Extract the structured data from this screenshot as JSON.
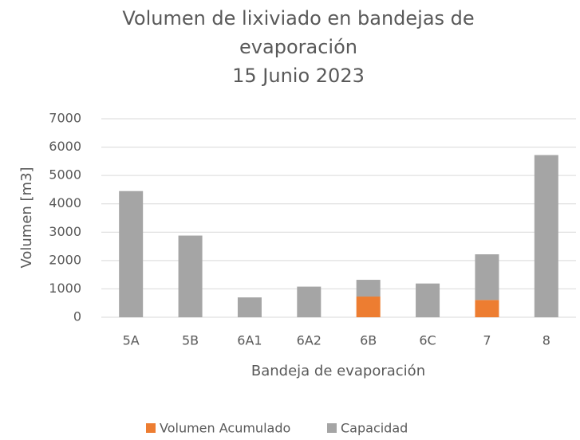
{
  "chart_data": {
    "type": "stacked_bar",
    "title": [
      "Volumen de lixiviado en bandejas de",
      "evaporación",
      "15 Junio 2023"
    ],
    "xlabel": "Bandeja de evaporación",
    "ylabel": "Volumen [m3]",
    "categories": [
      "5A",
      "5B",
      "6A1",
      "6A2",
      "6B",
      "6C",
      "7",
      "8"
    ],
    "series": [
      {
        "name": "Volumen Acumulado",
        "color": "#ed7d31",
        "values": [
          0,
          0,
          0,
          0,
          730,
          0,
          610,
          0
        ]
      },
      {
        "name": "Capacidad",
        "color": "#a5a5a5",
        "values": [
          4450,
          2880,
          700,
          1080,
          590,
          1190,
          1610,
          5720
        ]
      }
    ],
    "ylim": [
      0,
      7000
    ],
    "yticks": [
      0,
      1000,
      2000,
      3000,
      4000,
      5000,
      6000,
      7000
    ],
    "grid": true,
    "legend": "bottom"
  }
}
